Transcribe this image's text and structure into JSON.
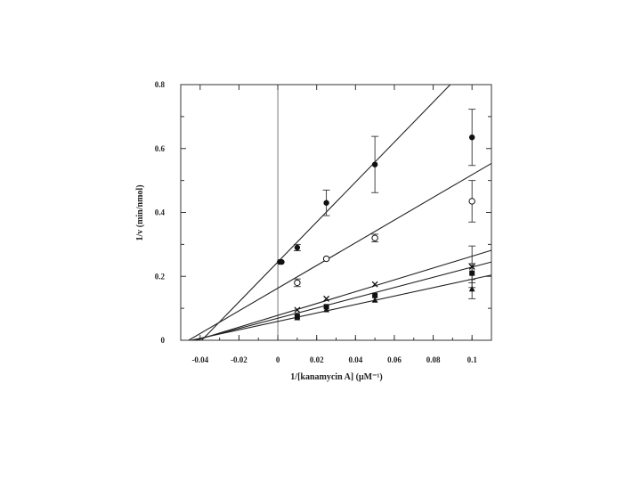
{
  "chart_data": {
    "type": "scatter",
    "title": "",
    "xlabel": "1/[kanamycin A] (μM⁻¹)",
    "ylabel": "1/v (min/nmol)",
    "xlim": [
      -0.05,
      0.11
    ],
    "ylim": [
      0,
      0.8
    ],
    "x_ticks": [
      -0.04,
      -0.02,
      0,
      0.02,
      0.04,
      0.06,
      0.08,
      0.1
    ],
    "x_tick_labels": [
      "-0.04",
      "-0.02",
      "0",
      "0.02",
      "0.04",
      "0.06",
      "0.08",
      "0.1"
    ],
    "y_ticks": [
      0,
      0.2,
      0.4,
      0.6,
      0.8
    ],
    "y_tick_labels": [
      "0",
      "0.2",
      "0.4",
      "0.6",
      "0.8"
    ],
    "vertical_reference_line_x": 0,
    "grid": false,
    "legend": "none",
    "series": [
      {
        "marker": "filled-circle",
        "points": [
          {
            "x": 0.001,
            "y": 0.245
          },
          {
            "x": 0.002,
            "y": 0.245
          },
          {
            "x": 0.01,
            "y": 0.29,
            "err": 0.01
          },
          {
            "x": 0.025,
            "y": 0.43,
            "err": 0.04
          },
          {
            "x": 0.05,
            "y": 0.55,
            "err": 0.088
          },
          {
            "x": 0.1,
            "y": 0.635,
            "err": 0.088
          }
        ],
        "fit": {
          "intercept": 0.245,
          "slope": 6.25
        }
      },
      {
        "marker": "open-circle",
        "points": [
          {
            "x": 0.01,
            "y": 0.18,
            "err": 0.012
          },
          {
            "x": 0.025,
            "y": 0.255
          },
          {
            "x": 0.05,
            "y": 0.32,
            "err": 0.012
          },
          {
            "x": 0.1,
            "y": 0.435,
            "err": 0.065
          }
        ],
        "fit": {
          "intercept": 0.163,
          "slope": 3.55
        }
      },
      {
        "marker": "cross",
        "points": [
          {
            "x": 0.01,
            "y": 0.095
          },
          {
            "x": 0.025,
            "y": 0.13
          },
          {
            "x": 0.05,
            "y": 0.175
          },
          {
            "x": 0.1,
            "y": 0.23,
            "err": 0.065
          }
        ],
        "fit": {
          "intercept": 0.078,
          "slope": 1.85
        }
      },
      {
        "marker": "filled-square",
        "points": [
          {
            "x": 0.01,
            "y": 0.075
          },
          {
            "x": 0.025,
            "y": 0.105
          },
          {
            "x": 0.05,
            "y": 0.14
          },
          {
            "x": 0.1,
            "y": 0.21,
            "err": 0.03
          }
        ],
        "fit": {
          "intercept": 0.069,
          "slope": 1.6
        }
      },
      {
        "marker": "filled-triangle",
        "points": [
          {
            "x": 0.01,
            "y": 0.07
          },
          {
            "x": 0.025,
            "y": 0.095
          },
          {
            "x": 0.05,
            "y": 0.125
          },
          {
            "x": 0.1,
            "y": 0.16,
            "err": 0.03
          }
        ],
        "fit": {
          "intercept": 0.059,
          "slope": 1.32
        }
      }
    ]
  }
}
